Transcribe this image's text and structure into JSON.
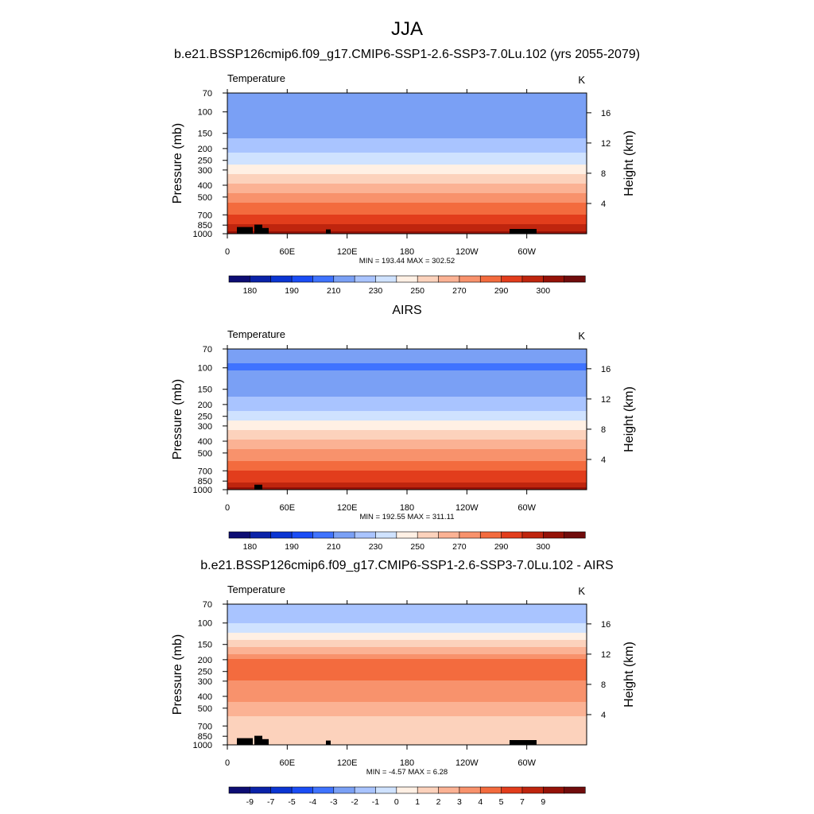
{
  "figure": {
    "main_title": "JJA",
    "colors": {
      "temperature_scale": [
        "#0d0d73",
        "#0a22a8",
        "#0b35d2",
        "#1a4df5",
        "#3f73ff",
        "#7aa0f5",
        "#a9c4ff",
        "#cfe2ff",
        "#fff0e4",
        "#fcd2bc",
        "#fbb294",
        "#f8926c",
        "#f36b3e",
        "#e23d1c",
        "#bf250e",
        "#951208",
        "#700c0c"
      ],
      "difference_scale": [
        "#0d0d73",
        "#0a22a8",
        "#0b35d2",
        "#1a4df5",
        "#3f73ff",
        "#7aa0f5",
        "#a9c4ff",
        "#cfe2ff",
        "#fff0e4",
        "#fcd2bc",
        "#fbb294",
        "#f8926c",
        "#f36b3e",
        "#e23d1c",
        "#bf250e",
        "#951208",
        "#700c0c"
      ],
      "topography": "#000000"
    }
  },
  "chart_data": [
    {
      "type": "heatmap",
      "title": "b.e21.BSSP126cmip6.f09_g17.CMIP6-SSP1-2.6-SSP3-7.0Lu.102 (yrs 2055-2079)",
      "variable": "Temperature",
      "units": "K",
      "ylabel": "Pressure (mb)",
      "ylabel_right": "Height (km)",
      "y_scale": "log",
      "y_ticks": [
        "70",
        "100",
        "150",
        "200",
        "250",
        "300",
        "400",
        "500",
        "700",
        "850",
        "1000"
      ],
      "y_right_ticks": [
        "4",
        "8",
        "12",
        "16"
      ],
      "x_ticks": [
        "0",
        "60E",
        "120E",
        "180",
        "120W",
        "60W"
      ],
      "stats": "MIN = 193.44  MAX = 302.52",
      "colorbar_labels": [
        "180",
        "190",
        "210",
        "230",
        "250",
        "270",
        "290",
        "300"
      ],
      "profile": {
        "pressure_mb": [
          70,
          100,
          150,
          200,
          250,
          300,
          400,
          500,
          700,
          850,
          1000
        ],
        "value": [
          205,
          200,
          208,
          216,
          226,
          236,
          252,
          264,
          281,
          290,
          298
        ]
      }
    },
    {
      "type": "heatmap",
      "title": "AIRS",
      "variable": "Temperature",
      "units": "K",
      "ylabel": "Pressure (mb)",
      "ylabel_right": "Height (km)",
      "y_scale": "log",
      "y_ticks": [
        "70",
        "100",
        "150",
        "200",
        "250",
        "300",
        "400",
        "500",
        "700",
        "850",
        "1000"
      ],
      "y_right_ticks": [
        "4",
        "8",
        "12",
        "16"
      ],
      "x_ticks": [
        "0",
        "60E",
        "120E",
        "180",
        "120W",
        "60W"
      ],
      "stats": "MIN = 192.55  MAX = 311.11",
      "colorbar_labels": [
        "180",
        "190",
        "210",
        "230",
        "250",
        "270",
        "290",
        "300"
      ],
      "profile": {
        "pressure_mb": [
          70,
          100,
          150,
          200,
          250,
          300,
          400,
          500,
          700,
          850,
          1000
        ],
        "value": [
          203,
          199,
          206,
          214,
          225,
          236,
          251,
          263,
          280,
          289,
          296
        ]
      }
    },
    {
      "type": "heatmap",
      "title": "b.e21.BSSP126cmip6.f09_g17.CMIP6-SSP1-2.6-SSP3-7.0Lu.102 - AIRS",
      "variable": "Temperature",
      "units": "K",
      "ylabel": "Pressure (mb)",
      "ylabel_right": "Height (km)",
      "y_scale": "log",
      "y_ticks": [
        "70",
        "100",
        "150",
        "200",
        "250",
        "300",
        "400",
        "500",
        "700",
        "850",
        "1000"
      ],
      "y_right_ticks": [
        "4",
        "8",
        "12",
        "16"
      ],
      "x_ticks": [
        "0",
        "60E",
        "120E",
        "180",
        "120W",
        "60W"
      ],
      "stats": "MIN =  -4.57  MAX =   6.28",
      "colorbar_labels": [
        "-9",
        "-7",
        "-5",
        "-4",
        "-3",
        "-2",
        "-1",
        "0",
        "1",
        "2",
        "3",
        "4",
        "5",
        "7",
        "9"
      ],
      "profile": {
        "pressure_mb": [
          70,
          100,
          150,
          200,
          250,
          300,
          400,
          500,
          700,
          850,
          1000
        ],
        "value": [
          -2,
          -1,
          1.5,
          4,
          4.5,
          4,
          3.5,
          2.5,
          1.5,
          1,
          1.5
        ]
      }
    }
  ]
}
